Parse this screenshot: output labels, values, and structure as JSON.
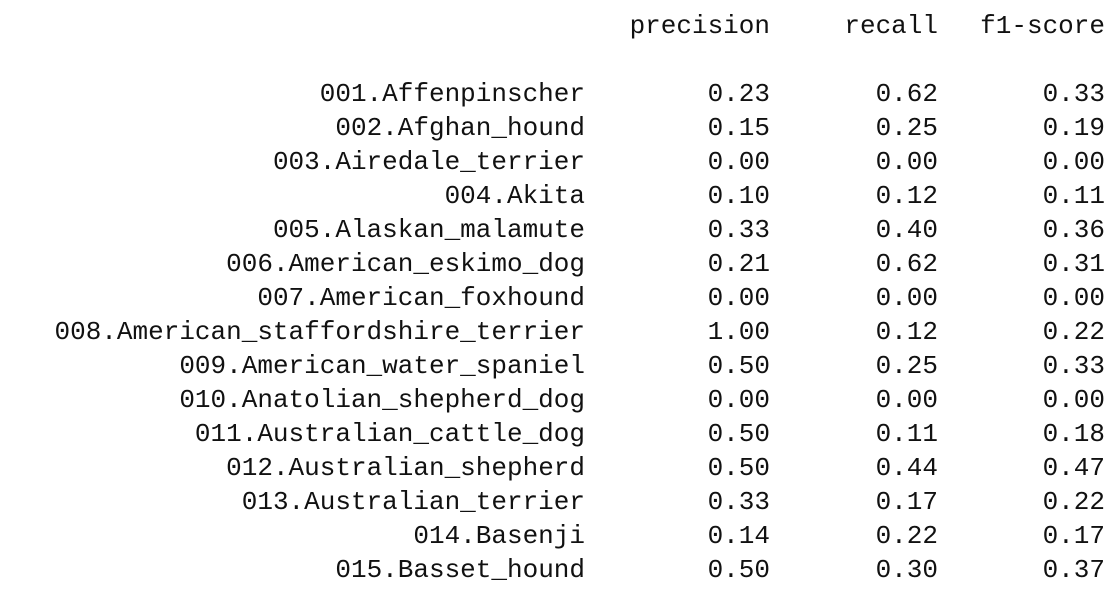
{
  "report": {
    "headers": {
      "precision": "precision",
      "recall": "recall",
      "f1": "f1-score"
    },
    "rows": [
      {
        "label": "001.Affenpinscher",
        "precision": "0.23",
        "recall": "0.62",
        "f1": "0.33"
      },
      {
        "label": "002.Afghan_hound",
        "precision": "0.15",
        "recall": "0.25",
        "f1": "0.19"
      },
      {
        "label": "003.Airedale_terrier",
        "precision": "0.00",
        "recall": "0.00",
        "f1": "0.00"
      },
      {
        "label": "004.Akita",
        "precision": "0.10",
        "recall": "0.12",
        "f1": "0.11"
      },
      {
        "label": "005.Alaskan_malamute",
        "precision": "0.33",
        "recall": "0.40",
        "f1": "0.36"
      },
      {
        "label": "006.American_eskimo_dog",
        "precision": "0.21",
        "recall": "0.62",
        "f1": "0.31"
      },
      {
        "label": "007.American_foxhound",
        "precision": "0.00",
        "recall": "0.00",
        "f1": "0.00"
      },
      {
        "label": "008.American_staffordshire_terrier",
        "precision": "1.00",
        "recall": "0.12",
        "f1": "0.22"
      },
      {
        "label": "009.American_water_spaniel",
        "precision": "0.50",
        "recall": "0.25",
        "f1": "0.33"
      },
      {
        "label": "010.Anatolian_shepherd_dog",
        "precision": "0.00",
        "recall": "0.00",
        "f1": "0.00"
      },
      {
        "label": "011.Australian_cattle_dog",
        "precision": "0.50",
        "recall": "0.11",
        "f1": "0.18"
      },
      {
        "label": "012.Australian_shepherd",
        "precision": "0.50",
        "recall": "0.44",
        "f1": "0.47"
      },
      {
        "label": "013.Australian_terrier",
        "precision": "0.33",
        "recall": "0.17",
        "f1": "0.22"
      },
      {
        "label": "014.Basenji",
        "precision": "0.14",
        "recall": "0.22",
        "f1": "0.17"
      },
      {
        "label": "015.Basset_hound",
        "precision": "0.50",
        "recall": "0.30",
        "f1": "0.37"
      }
    ]
  }
}
